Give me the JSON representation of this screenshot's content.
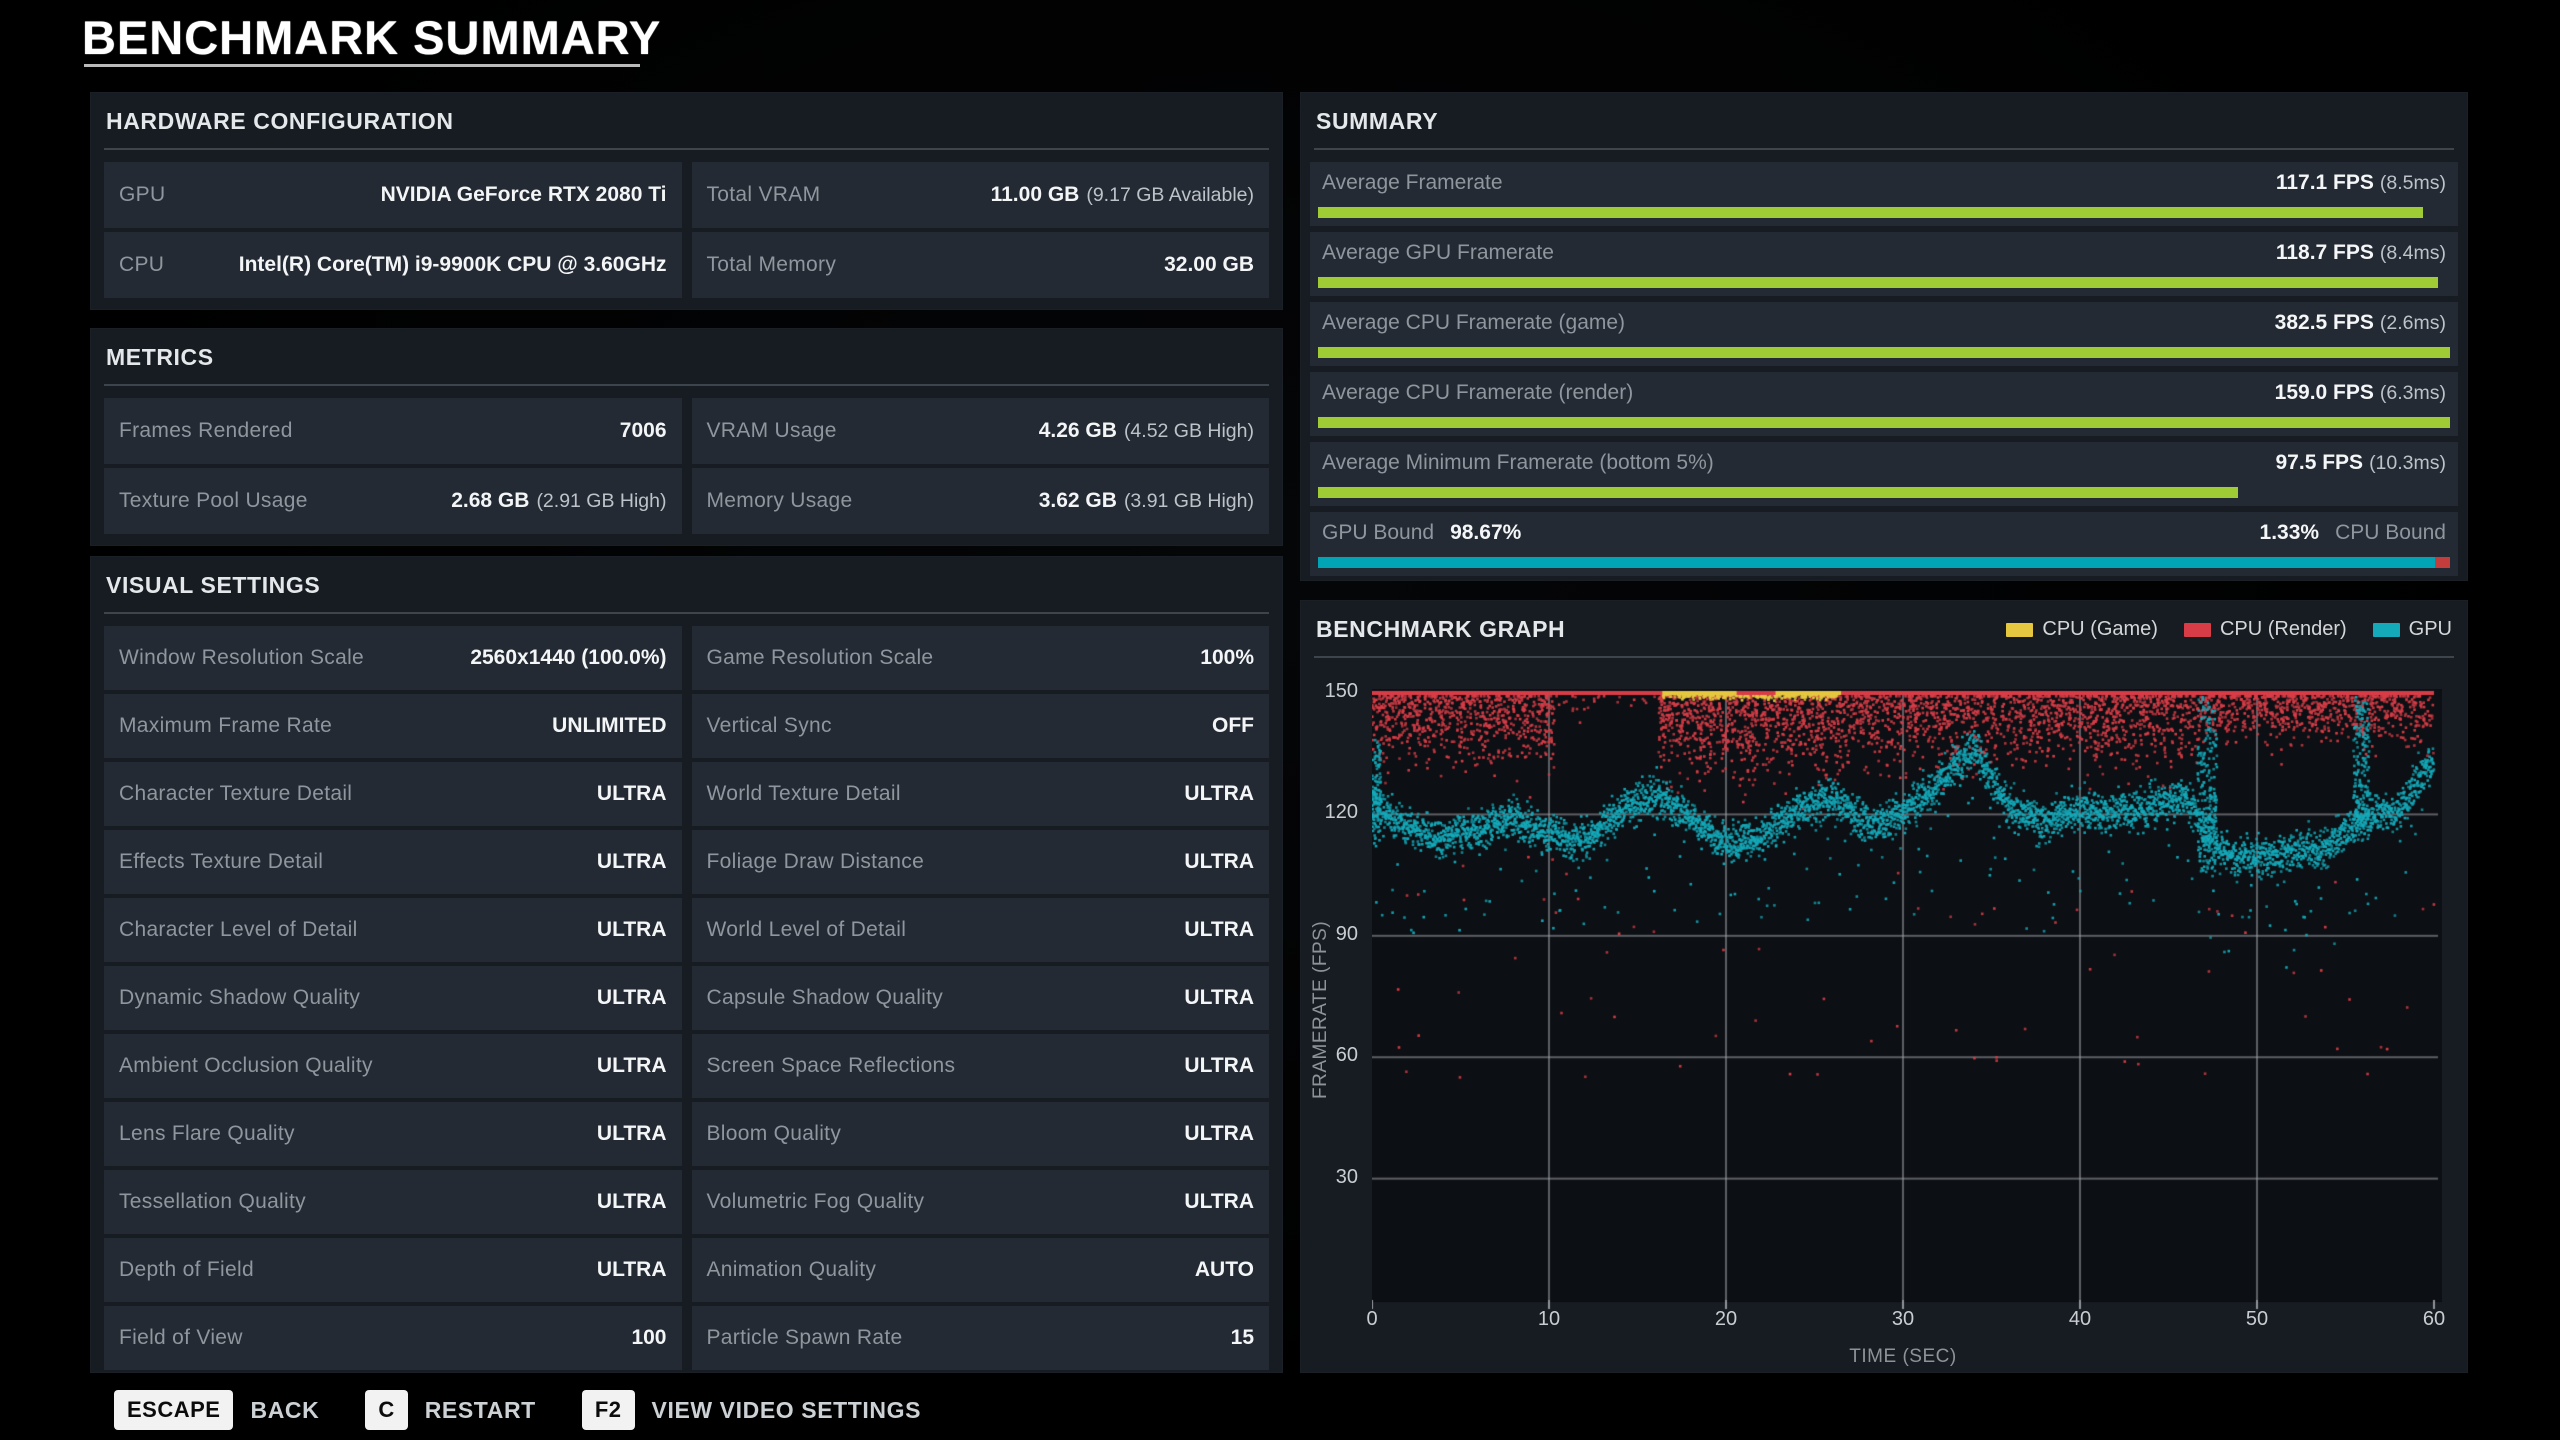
{
  "title": "BENCHMARK SUMMARY",
  "colors": {
    "accent_green": "#9fcb35",
    "teal": "#00a4b4",
    "bound_red": "#c43d3d",
    "red": "#d83d47",
    "yellow": "#e6c840",
    "gpu_scatter": "#14aaba",
    "panel_bg": "#171c22",
    "row_bg": "#232a33",
    "plot_bg": "#0c0f13"
  },
  "panels": {
    "hardware": {
      "title": "HARDWARE CONFIGURATION",
      "rows": [
        [
          {
            "label": "GPU",
            "value": "NVIDIA GeForce RTX 2080 Ti",
            "sub": ""
          },
          {
            "label": "Total VRAM",
            "value": "11.00 GB",
            "sub": "(9.17 GB Available)"
          }
        ],
        [
          {
            "label": "CPU",
            "value": "Intel(R) Core(TM) i9-9900K CPU @ 3.60GHz",
            "sub": ""
          },
          {
            "label": "Total Memory",
            "value": "32.00 GB",
            "sub": ""
          }
        ]
      ]
    },
    "metrics": {
      "title": "METRICS",
      "rows": [
        [
          {
            "label": "Frames Rendered",
            "value": "7006",
            "sub": ""
          },
          {
            "label": "VRAM Usage",
            "value": "4.26 GB",
            "sub": "(4.52 GB High)"
          }
        ],
        [
          {
            "label": "Texture Pool Usage",
            "value": "2.68 GB",
            "sub": "(2.91 GB High)"
          },
          {
            "label": "Memory Usage",
            "value": "3.62 GB",
            "sub": "(3.91 GB High)"
          }
        ]
      ]
    },
    "visual": {
      "title": "VISUAL SETTINGS",
      "rows": [
        [
          {
            "label": "Window Resolution Scale",
            "value": "2560x1440 (100.0%)",
            "sub": ""
          },
          {
            "label": "Game Resolution Scale",
            "value": "100%",
            "sub": ""
          }
        ],
        [
          {
            "label": "Maximum Frame Rate",
            "value": "UNLIMITED",
            "sub": ""
          },
          {
            "label": "Vertical Sync",
            "value": "OFF",
            "sub": ""
          }
        ],
        [
          {
            "label": "Character Texture Detail",
            "value": "ULTRA",
            "sub": ""
          },
          {
            "label": "World Texture Detail",
            "value": "ULTRA",
            "sub": ""
          }
        ],
        [
          {
            "label": "Effects Texture Detail",
            "value": "ULTRA",
            "sub": ""
          },
          {
            "label": "Foliage Draw Distance",
            "value": "ULTRA",
            "sub": ""
          }
        ],
        [
          {
            "label": "Character Level of Detail",
            "value": "ULTRA",
            "sub": ""
          },
          {
            "label": "World Level of Detail",
            "value": "ULTRA",
            "sub": ""
          }
        ],
        [
          {
            "label": "Dynamic Shadow Quality",
            "value": "ULTRA",
            "sub": ""
          },
          {
            "label": "Capsule Shadow Quality",
            "value": "ULTRA",
            "sub": ""
          }
        ],
        [
          {
            "label": "Ambient Occlusion Quality",
            "value": "ULTRA",
            "sub": ""
          },
          {
            "label": "Screen Space Reflections",
            "value": "ULTRA",
            "sub": ""
          }
        ],
        [
          {
            "label": "Lens Flare Quality",
            "value": "ULTRA",
            "sub": ""
          },
          {
            "label": "Bloom Quality",
            "value": "ULTRA",
            "sub": ""
          }
        ],
        [
          {
            "label": "Tessellation Quality",
            "value": "ULTRA",
            "sub": ""
          },
          {
            "label": "Volumetric Fog Quality",
            "value": "ULTRA",
            "sub": ""
          }
        ],
        [
          {
            "label": "Depth of Field",
            "value": "ULTRA",
            "sub": ""
          },
          {
            "label": "Animation Quality",
            "value": "AUTO",
            "sub": ""
          }
        ],
        [
          {
            "label": "Field of View",
            "value": "100",
            "sub": ""
          },
          {
            "label": "Particle Spawn Rate",
            "value": "15",
            "sub": ""
          }
        ]
      ]
    },
    "summary": {
      "title": "SUMMARY",
      "rows": [
        {
          "label": "Average Framerate",
          "value": "117.1 FPS",
          "sub": "(8.5ms)",
          "bar_pct": 97.6
        },
        {
          "label": "Average GPU Framerate",
          "value": "118.7 FPS",
          "sub": "(8.4ms)",
          "bar_pct": 98.9
        },
        {
          "label": "Average CPU Framerate (game)",
          "value": "382.5 FPS",
          "sub": "(2.6ms)",
          "bar_pct": 100
        },
        {
          "label": "Average CPU Framerate (render)",
          "value": "159.0 FPS",
          "sub": "(6.3ms)",
          "bar_pct": 100
        },
        {
          "label": "Average Minimum Framerate (bottom 5%)",
          "value": "97.5 FPS",
          "sub": "(10.3ms)",
          "bar_pct": 81.3
        }
      ],
      "bound": {
        "left_label": "GPU Bound",
        "left_value": "98.67%",
        "right_value": "1.33%",
        "right_label": "CPU Bound",
        "gpu_pct": 98.67
      }
    },
    "graph": {
      "title": "BENCHMARK GRAPH"
    }
  },
  "chart_data": {
    "type": "scatter",
    "title": "BENCHMARK GRAPH",
    "xlabel": "TIME (SEC)",
    "ylabel": "FRAMERATE (FPS)",
    "xlim": [
      0,
      60
    ],
    "x_ticks": [
      0,
      10,
      20,
      30,
      40,
      50,
      60
    ],
    "ylim": [
      0,
      150
    ],
    "y_ticks": [
      150,
      120,
      90,
      60,
      30
    ],
    "grid": true,
    "legend_position": "top-right",
    "cap_fps": 150,
    "cap_line": {
      "color": "#d83d47",
      "yellow_segments": [
        [
          16.4,
          20.6
        ],
        [
          22.8,
          26.5
        ]
      ]
    },
    "series": [
      {
        "name": "CPU (Game)",
        "color": "#e6c840",
        "type": "capped_at_150",
        "cap_segments": [
          [
            16.4,
            26.5
          ]
        ],
        "dots_per_sec": 40
      },
      {
        "name": "CPU (Render)",
        "color": "#d83d47",
        "type": "band_below_cap",
        "count": 5200,
        "segments": [
          {
            "t": [
              0,
              10.3
            ],
            "spread": 11,
            "density": 1.0
          },
          {
            "t": [
              10.3,
              16.2
            ],
            "spread": 5,
            "density": 0.07
          },
          {
            "t": [
              16.2,
              26.6
            ],
            "spread": 13,
            "density": 1.25
          },
          {
            "t": [
              26.6,
              47.0
            ],
            "spread": 11,
            "density": 1.0
          },
          {
            "t": [
              47.0,
              60.0
            ],
            "spread": 8,
            "density": 0.8
          }
        ],
        "outlier_rate": 0.012,
        "outlier_range": [
          55,
          110
        ]
      },
      {
        "name": "GPU",
        "color": "#14aaba",
        "type": "mean_band",
        "count": 4600,
        "jitter": 3.3,
        "mean_t": [
          0,
          2,
          4,
          6,
          8,
          10,
          12,
          14,
          16,
          18,
          20,
          22,
          24,
          26,
          28,
          30,
          32,
          34,
          36,
          38,
          40,
          42,
          44,
          46,
          48,
          50,
          52,
          54,
          56,
          58,
          60
        ],
        "mean_fps": [
          122,
          117,
          114,
          116,
          119,
          115,
          113,
          121,
          125,
          119,
          113,
          114,
          121,
          124,
          117,
          120,
          128,
          136,
          122,
          118,
          121,
          120,
          122,
          124,
          110,
          109,
          111,
          112,
          119,
          121,
          134
        ],
        "outlier_rate": 0.04,
        "outlier_drop": [
          4,
          26
        ],
        "streaks": [
          {
            "t": 0.25,
            "width": 0.5,
            "from": 138,
            "to": 114
          },
          {
            "t": 47.2,
            "width": 1.1,
            "from": 150,
            "to": 106
          },
          {
            "t": 55.9,
            "width": 0.9,
            "from": 149,
            "to": 117
          }
        ]
      }
    ]
  },
  "footer": {
    "keys": [
      {
        "key": "ESCAPE",
        "label": "BACK"
      },
      {
        "key": "C",
        "label": "RESTART"
      },
      {
        "key": "F2",
        "label": "VIEW VIDEO SETTINGS"
      }
    ]
  }
}
